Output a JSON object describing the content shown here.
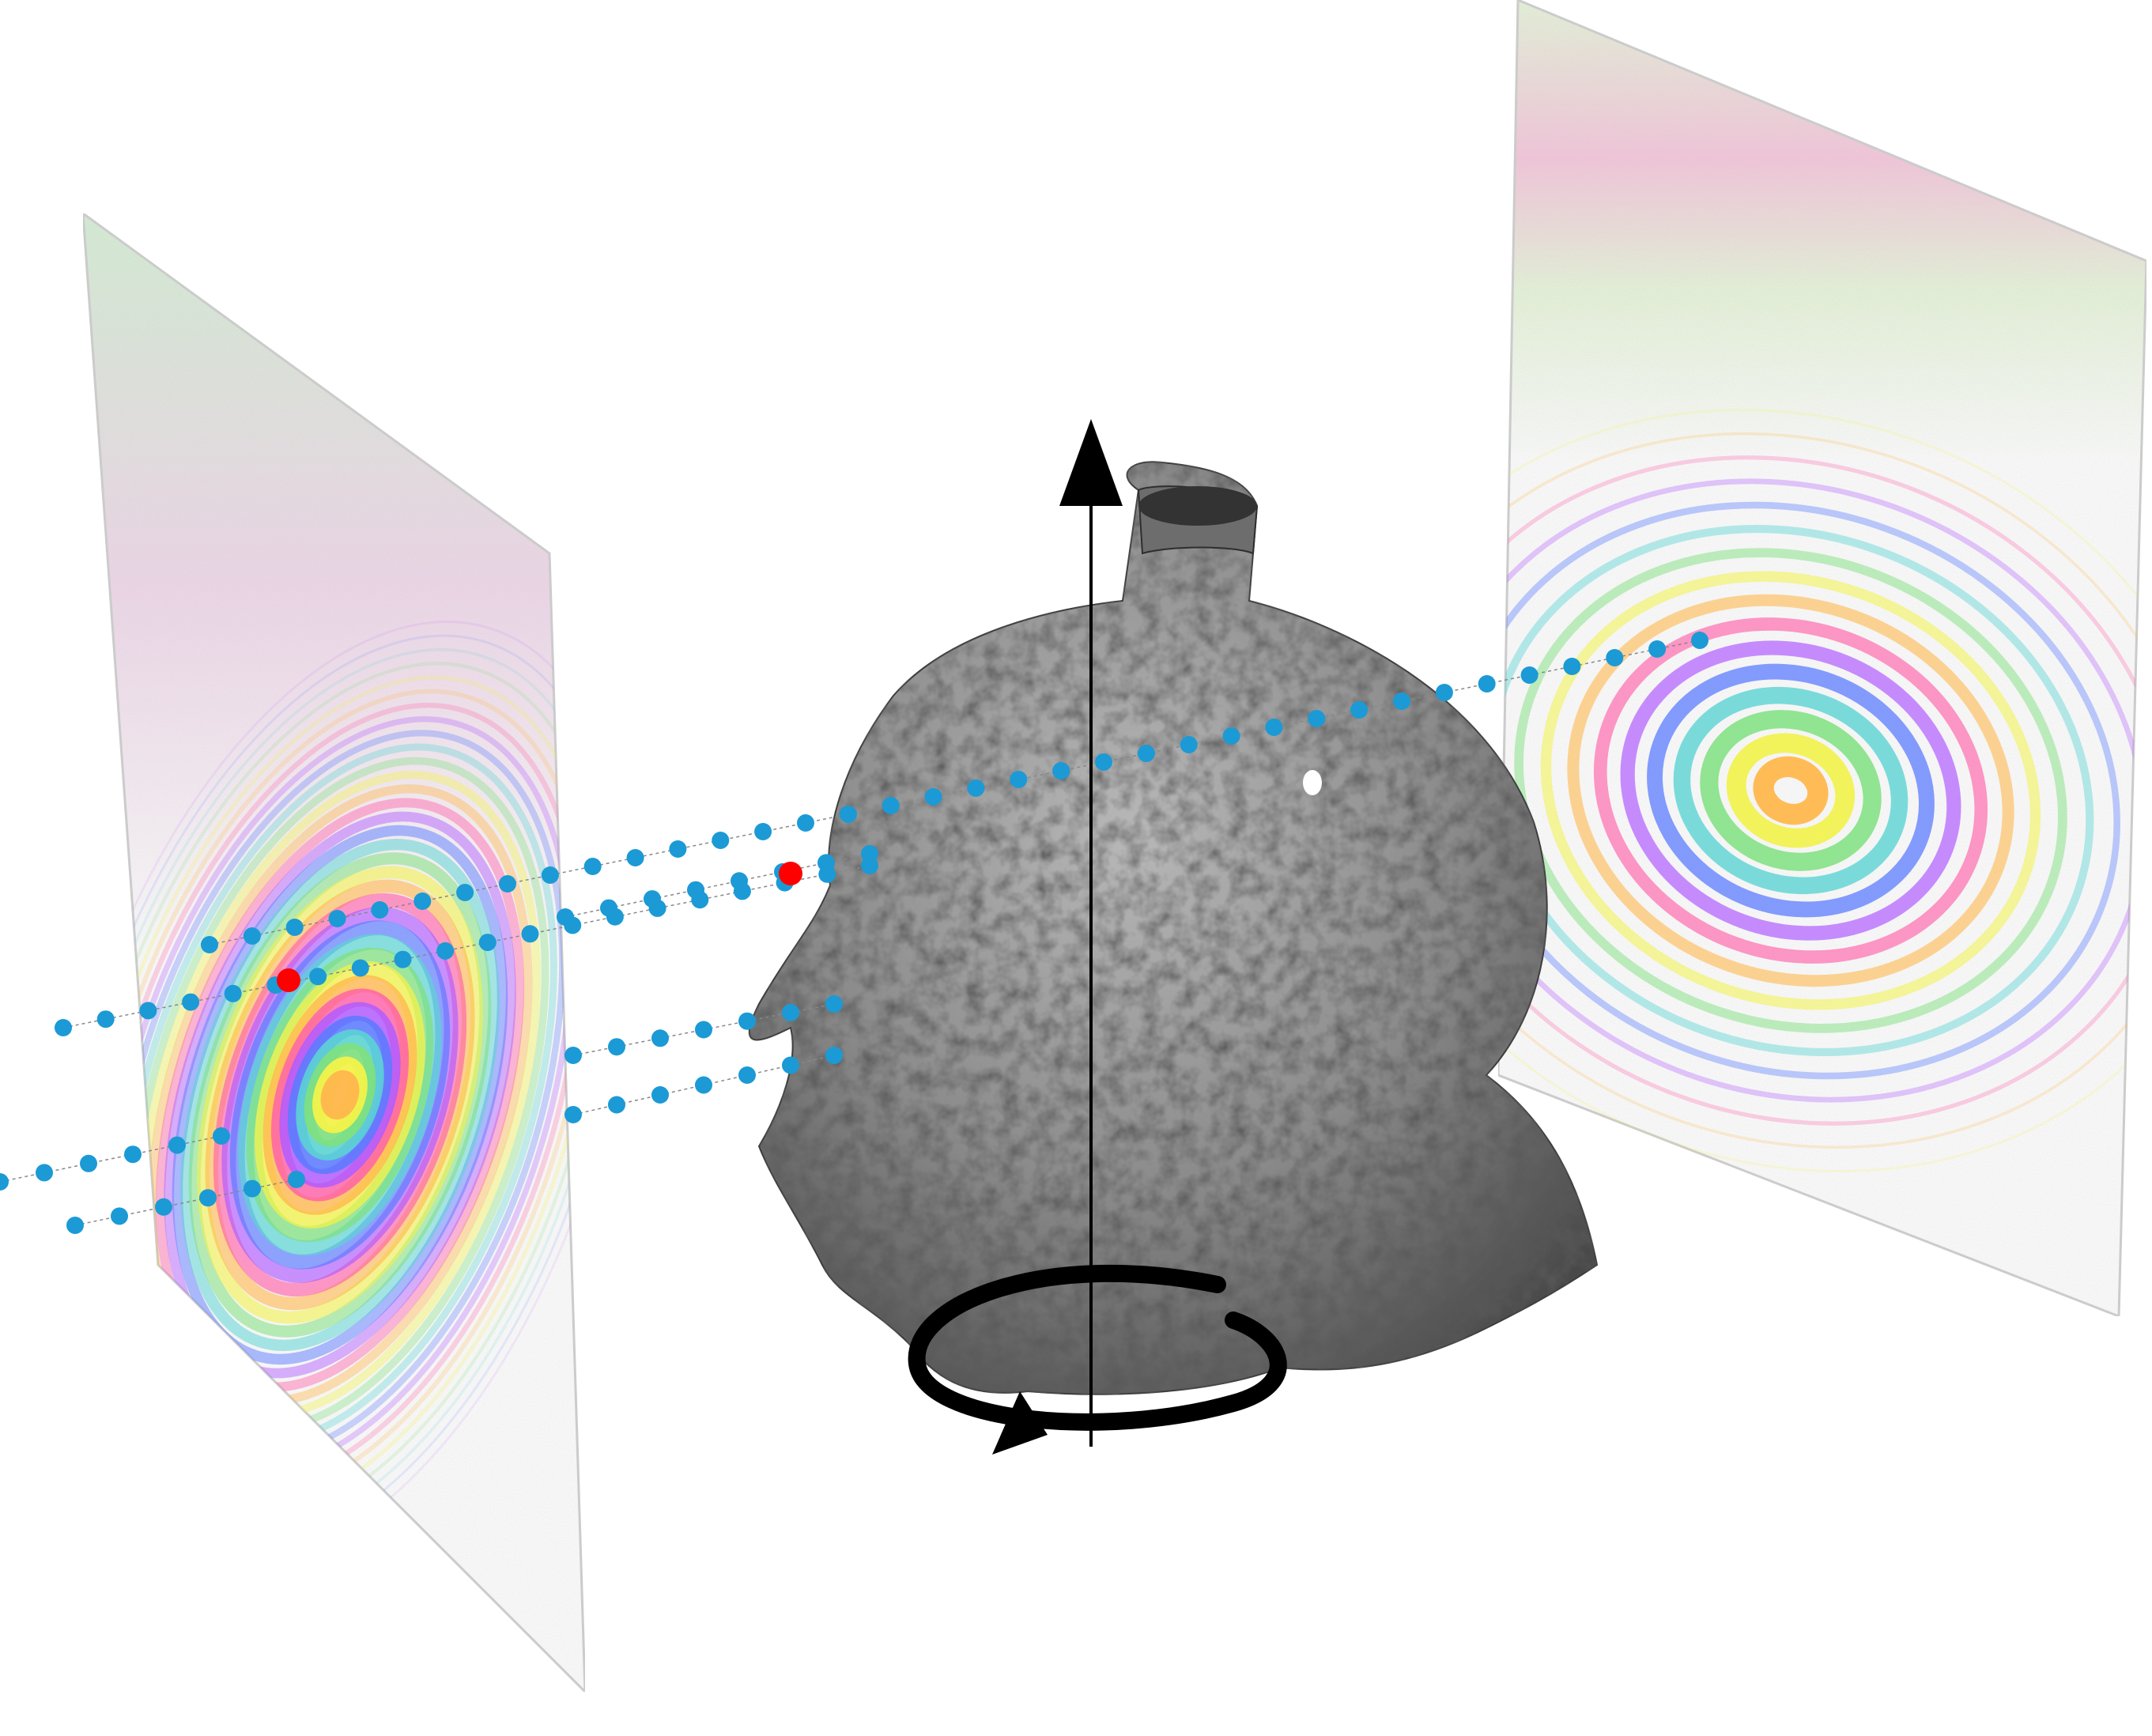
{
  "diagram": {
    "kind": "tomographic-projection-schematic",
    "elements": [
      {
        "id": "left-projection-panel",
        "content": "interference-fringe-pattern",
        "center": "concentric-rings"
      },
      {
        "id": "right-projection-panel",
        "content": "interference-fringe-pattern",
        "center": "elliptical-rings"
      },
      {
        "id": "sample-object",
        "content": "grayscale-3d-volume-rendering"
      },
      {
        "id": "rotation-axis",
        "content": "vertical-arrow-with-circular-rotation-arrow"
      }
    ],
    "ray_count": 7,
    "ray_color": "#1b9ad6",
    "highlight_color": "#ff0000",
    "axis_color": "#000000",
    "ring_palette": [
      "#ff5fa8",
      "#ffb84d",
      "#f2f24a",
      "#7fe07f",
      "#5bd3d3",
      "#5b7bff",
      "#b05bff"
    ]
  }
}
